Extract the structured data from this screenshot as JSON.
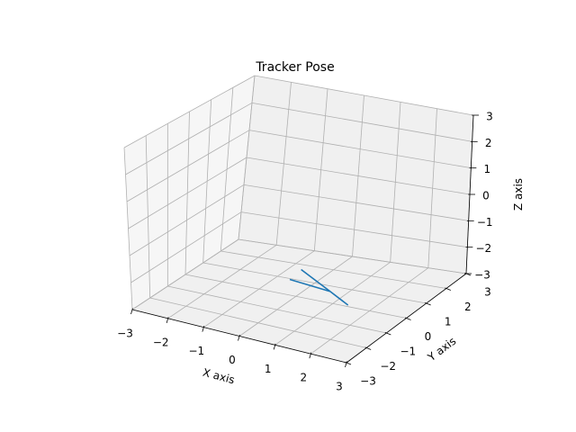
{
  "chart_data": {
    "type": "line",
    "title": "Tracker Pose",
    "xlabel": "X axis",
    "ylabel": "Y axis",
    "zlabel": "Z axis",
    "xlim": [
      -3,
      3
    ],
    "ylim": [
      -3,
      3
    ],
    "zlim": [
      -3,
      3
    ],
    "ticks": [
      -3,
      -2,
      -1,
      0,
      1,
      2,
      3
    ],
    "tick_labels": [
      "−3",
      "−2",
      "−1",
      "0",
      "1",
      "2",
      "3"
    ],
    "grid": true,
    "projection": "3d",
    "series": [
      {
        "color": "#1f77b4",
        "points": [
          {
            "x": -0.2,
            "y": 0.05,
            "z": -2.45
          },
          {
            "x": 0.9,
            "y": 0.05,
            "z": -2.6
          },
          {
            "x": 1.35,
            "y": 0.1,
            "z": -3.0
          },
          {
            "x": 0.9,
            "y": 0.05,
            "z": -2.6
          },
          {
            "x": 0.1,
            "y": 0.05,
            "z": -2.0
          }
        ]
      }
    ]
  }
}
